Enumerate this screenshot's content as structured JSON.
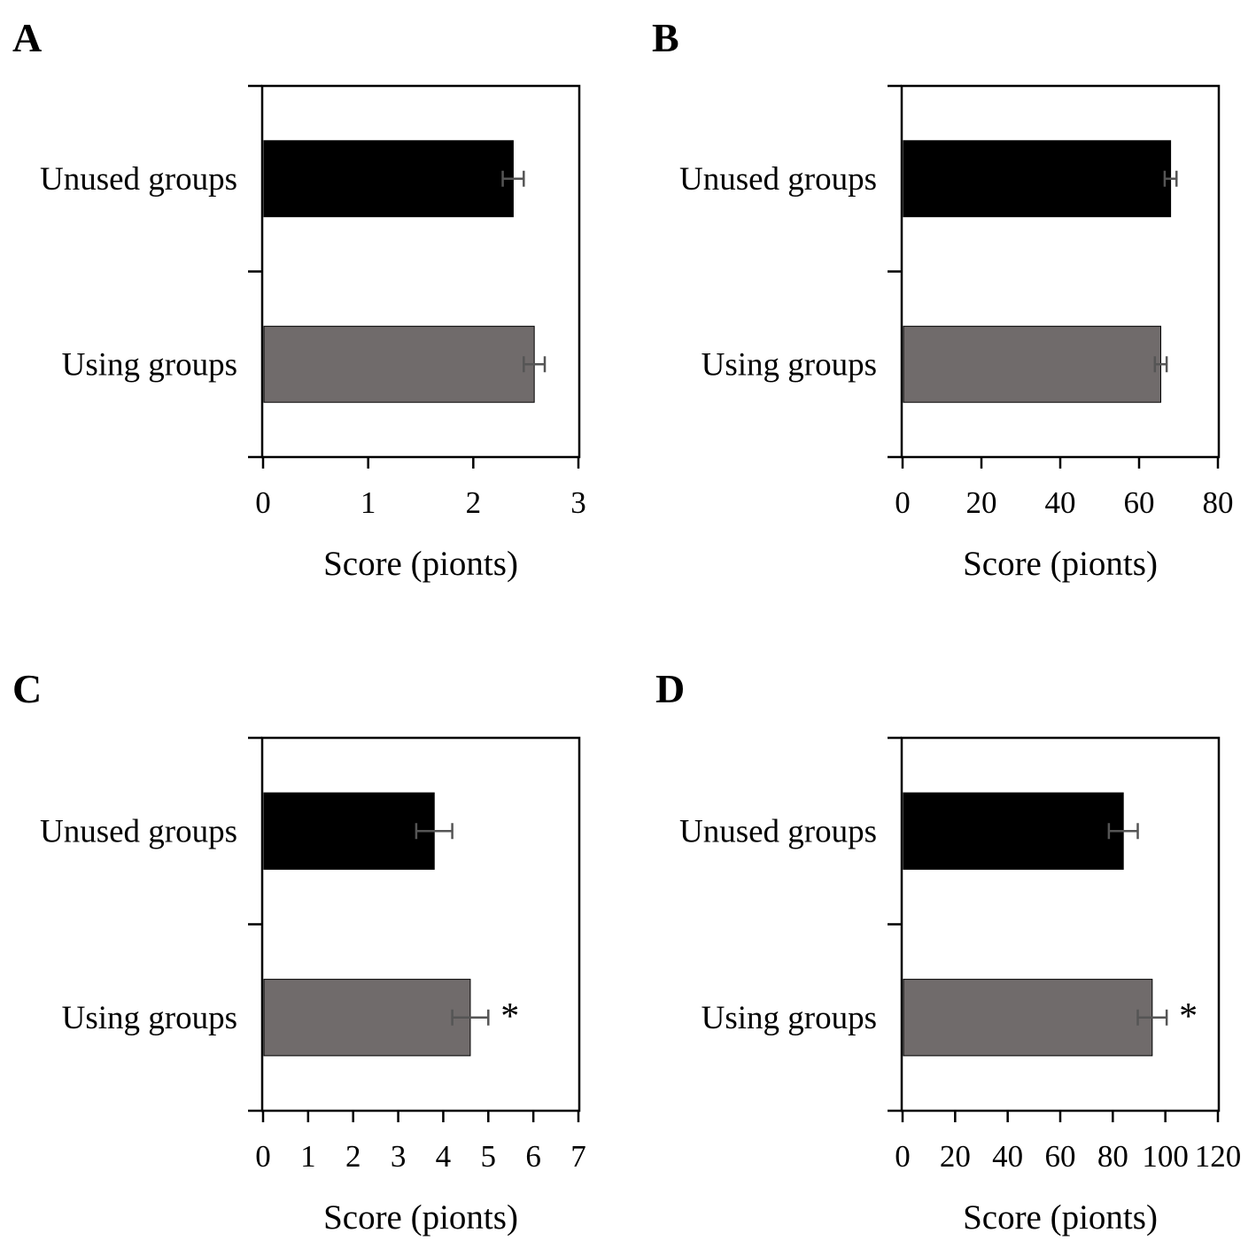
{
  "chart_data": [
    {
      "panel": "A",
      "type": "bar",
      "orientation": "horizontal",
      "categories": [
        "Unused groups",
        "Using groups"
      ],
      "values": [
        2.38,
        2.58
      ],
      "errors": [
        0.1,
        0.1
      ],
      "significance": [
        "",
        ""
      ],
      "colors": [
        "#000000",
        "#706b6b"
      ],
      "xlabel": "Score (pionts)",
      "xlim": [
        0,
        3
      ],
      "xticks": [
        0,
        1,
        2,
        3
      ],
      "xtick_labels": [
        "0",
        "1",
        "2",
        "3"
      ],
      "grid": false
    },
    {
      "panel": "B",
      "type": "bar",
      "orientation": "horizontal",
      "categories": [
        "Unused groups",
        "Using groups"
      ],
      "values": [
        68,
        65.5
      ],
      "errors": [
        1.5,
        1.5
      ],
      "significance": [
        "",
        ""
      ],
      "colors": [
        "#000000",
        "#706b6b"
      ],
      "xlabel": "Score (pionts)",
      "xlim": [
        0,
        80
      ],
      "xticks": [
        0,
        20,
        40,
        60,
        80
      ],
      "xtick_labels": [
        "0",
        "20",
        "40",
        "60",
        "80"
      ],
      "grid": false
    },
    {
      "panel": "C",
      "type": "bar",
      "orientation": "horizontal",
      "categories": [
        "Unused groups",
        "Using groups"
      ],
      "values": [
        3.8,
        4.6
      ],
      "errors": [
        0.4,
        0.4
      ],
      "significance": [
        "",
        "*"
      ],
      "colors": [
        "#000000",
        "#706b6b"
      ],
      "xlabel": "Score (pionts)",
      "xlim": [
        0,
        7
      ],
      "xticks": [
        0,
        1,
        2,
        3,
        4,
        5,
        6,
        7
      ],
      "xtick_labels": [
        "0",
        "1",
        "2",
        "3",
        "4",
        "5",
        "6",
        "7"
      ],
      "grid": false
    },
    {
      "panel": "D",
      "type": "bar",
      "orientation": "horizontal",
      "categories": [
        "Unused groups",
        "Using groups"
      ],
      "values": [
        84,
        95
      ],
      "errors": [
        5.5,
        5.5
      ],
      "significance": [
        "",
        "*"
      ],
      "colors": [
        "#000000",
        "#706b6b"
      ],
      "xlabel": "Score (pionts)",
      "xlim": [
        0,
        120
      ],
      "xticks": [
        0,
        20,
        40,
        60,
        80,
        100,
        120
      ],
      "xtick_labels": [
        "0",
        "20",
        "40",
        "60",
        "80",
        "100",
        "120"
      ],
      "grid": false
    }
  ]
}
